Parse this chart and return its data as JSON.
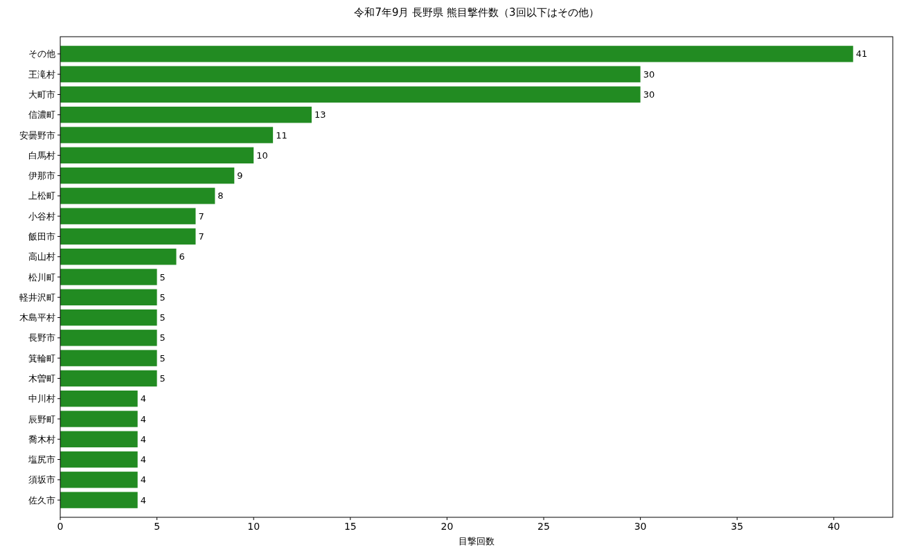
{
  "chart_data": {
    "type": "bar",
    "orientation": "horizontal",
    "title": "令和7年9月 長野県 熊目撃件数（3回以下はその他）",
    "xlabel": "目撃回数",
    "categories": [
      "その他",
      "王滝村",
      "大町市",
      "信濃町",
      "安曇野市",
      "白馬村",
      "伊那市",
      "上松町",
      "小谷村",
      "飯田市",
      "高山村",
      "松川町",
      "軽井沢町",
      "木島平村",
      "長野市",
      "箕輪町",
      "木曽町",
      "中川村",
      "辰野町",
      "喬木村",
      "塩尻市",
      "須坂市",
      "佐久市"
    ],
    "values": [
      41,
      30,
      30,
      13,
      11,
      10,
      9,
      8,
      7,
      7,
      6,
      5,
      5,
      5,
      5,
      5,
      5,
      4,
      4,
      4,
      4,
      4,
      4
    ],
    "color": "#228b22",
    "xlim": [
      0,
      43.05
    ],
    "xticks": [
      0,
      5,
      10,
      15,
      20,
      25,
      30,
      35,
      40
    ],
    "data_labels": true
  }
}
